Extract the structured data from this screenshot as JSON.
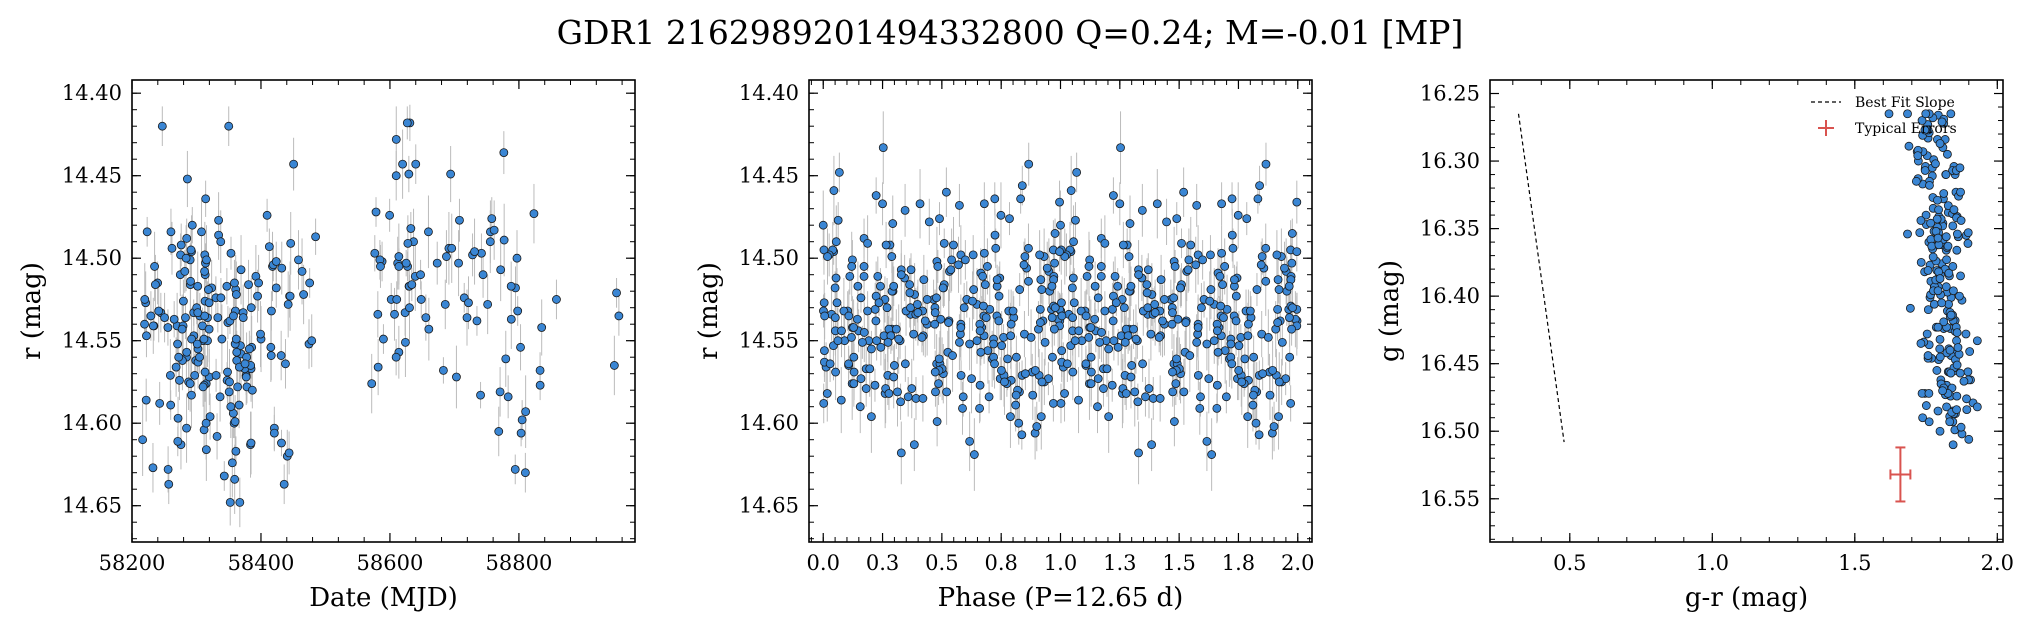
{
  "figure": {
    "title": "GDR1 2162989201494332800  Q=0.24; M=-0.01 [MP]"
  },
  "chart_data": [
    {
      "type": "scatter",
      "xlabel": "Date (MJD)",
      "ylabel": "r (mag)",
      "xlim": [
        58200,
        58980
      ],
      "ylim": [
        14.672,
        14.392
      ],
      "y_inverted": true,
      "xticks": [
        58200,
        58400,
        58600,
        58800
      ],
      "yticks": [
        14.4,
        14.45,
        14.5,
        14.55,
        14.6,
        14.65
      ],
      "marker_color": "#3a86d4",
      "errorbar_color": "#bbbbbb",
      "series": [
        {
          "points": []
        }
      ]
    },
    {
      "type": "scatter",
      "xlabel": "Phase (P=12.65 d)",
      "ylabel": "r (mag)",
      "xlim": [
        -0.06,
        2.06
      ],
      "ylim": [
        14.672,
        14.392
      ],
      "y_inverted": true,
      "xticks": [
        0.0,
        0.25,
        0.5,
        0.75,
        1.0,
        1.25,
        1.5,
        1.75,
        2.0
      ],
      "yticks": [
        14.4,
        14.45,
        14.5,
        14.55,
        14.6,
        14.65
      ],
      "marker_color": "#3a86d4",
      "errorbar_color": "#bbbbbb",
      "series": [
        {
          "points": []
        }
      ]
    },
    {
      "type": "scatter",
      "xlabel": "g-r (mag)",
      "ylabel": "g (mag)",
      "xlim": [
        0.22,
        2.02
      ],
      "ylim": [
        16.582,
        16.24
      ],
      "y_inverted": true,
      "xticks": [
        0.5,
        1.0,
        1.5,
        2.0
      ],
      "yticks": [
        16.25,
        16.3,
        16.35,
        16.4,
        16.45,
        16.5,
        16.55
      ],
      "marker_color": "#3a86d4",
      "legend": {
        "location": "top-right",
        "entries": [
          "Best Fit Slope",
          "Typical Errors"
        ]
      },
      "best_fit_slope": {
        "x": [
          0.32,
          0.48
        ],
        "y": [
          16.265,
          16.508
        ],
        "color": "#000000"
      },
      "typical_errors": {
        "x": 1.66,
        "y": 16.532,
        "xerr": 0.035,
        "yerr": 0.02,
        "color": "#d9534f"
      },
      "series": [
        {
          "points": []
        }
      ]
    }
  ]
}
